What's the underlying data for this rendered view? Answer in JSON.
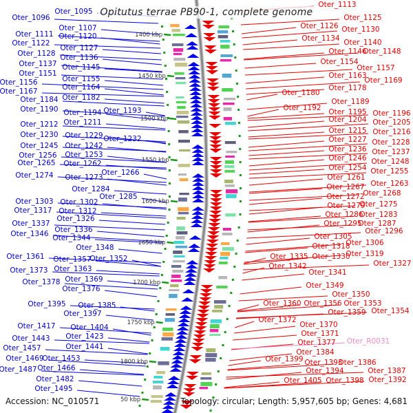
{
  "title": "Opitutus terrae PB90-1, complete genome",
  "footer": {
    "accession": "Accession: NC_010571",
    "summary": "Topology: circular; Length: 5,957,605 bp; Genes: 4,681"
  },
  "colors": {
    "forward_strand": "#0000e6",
    "reverse_strand": "#e60000",
    "rna_label": "#f08cc8",
    "backbone": "#888888",
    "tick": "#1a9a1a"
  },
  "kbp_ticks": [
    "1400 kbp",
    "1450 kbp",
    "1500 kbp",
    "1550 kbp",
    "1600 kbp",
    "1650 kbp",
    "1700 kbp",
    "1750 kbp",
    "1800 kbp",
    "50 kbp"
  ],
  "forward_genes": [
    {
      "label": "Oter_1095"
    },
    {
      "label": "Oter_1096"
    },
    {
      "label": "Oter_1107"
    },
    {
      "label": "Oter_1111"
    },
    {
      "label": "Oter_1120"
    },
    {
      "label": "Oter_1122"
    },
    {
      "label": "Oter_1127"
    },
    {
      "label": "Oter_1128"
    },
    {
      "label": "Oter_1136"
    },
    {
      "label": "Oter_1137"
    },
    {
      "label": "Oter_1145"
    },
    {
      "label": "Oter_1151"
    },
    {
      "label": "Oter_1155"
    },
    {
      "label": "Oter_1156"
    },
    {
      "label": "Oter_1164"
    },
    {
      "label": "Oter_1167"
    },
    {
      "label": "Oter_1182"
    },
    {
      "label": "Oter_1184"
    },
    {
      "label": "Oter_1190"
    },
    {
      "label": "Oter_1194"
    },
    {
      "label": "Oter_1193"
    },
    {
      "label": "Oter_1212"
    },
    {
      "label": "Oter_1211"
    },
    {
      "label": "Oter_1230"
    },
    {
      "label": "Oter_1229"
    },
    {
      "label": "Oter_1232"
    },
    {
      "label": "Oter_1245"
    },
    {
      "label": "Oter_1242"
    },
    {
      "label": "Oter_1256"
    },
    {
      "label": "Oter_1253"
    },
    {
      "label": "Oter_1265"
    },
    {
      "label": "Oter_1262"
    },
    {
      "label": "Oter_1266"
    },
    {
      "label": "Oter_1274"
    },
    {
      "label": "Oter_1273"
    },
    {
      "label": "Oter_1284"
    },
    {
      "label": "Oter_1285"
    },
    {
      "label": "Oter_1303"
    },
    {
      "label": "Oter_1302"
    },
    {
      "label": "Oter_1317"
    },
    {
      "label": "Oter_1312"
    },
    {
      "label": "Oter_1326"
    },
    {
      "label": "Oter_1337"
    },
    {
      "label": "Oter_1336"
    },
    {
      "label": "Oter_1346"
    },
    {
      "label": "Oter_1344"
    },
    {
      "label": "Oter_1348"
    },
    {
      "label": "Oter_1361"
    },
    {
      "label": "Oter_1357"
    },
    {
      "label": "Oter_1352"
    },
    {
      "label": "Oter_1363"
    },
    {
      "label": "Oter_1373"
    },
    {
      "label": "Oter_1369"
    },
    {
      "label": "Oter_1378"
    },
    {
      "label": "Oter_1376"
    },
    {
      "label": "Oter_1395"
    },
    {
      "label": "Oter_1385"
    },
    {
      "label": "Oter_1397"
    },
    {
      "label": "Oter_1417"
    },
    {
      "label": "Oter_1404"
    },
    {
      "label": "Oter_1443"
    },
    {
      "label": "Oter_1423"
    },
    {
      "label": "Oter_1457"
    },
    {
      "label": "Oter_1441"
    },
    {
      "label": "Oter_1469"
    },
    {
      "label": "Oter_1453"
    },
    {
      "label": "Oter_1487"
    },
    {
      "label": "Oter_1466"
    },
    {
      "label": "Oter_1482"
    },
    {
      "label": "Oter_1495"
    }
  ],
  "reverse_genes": [
    {
      "label": "Oter_1113"
    },
    {
      "label": "Oter_1125"
    },
    {
      "label": "Oter_1126"
    },
    {
      "label": "Oter_1130"
    },
    {
      "label": "Oter_1134"
    },
    {
      "label": "Oter_1140"
    },
    {
      "label": "Oter_1146"
    },
    {
      "label": "Oter_1148"
    },
    {
      "label": "Oter_1154"
    },
    {
      "label": "Oter_1157"
    },
    {
      "label": "Oter_1163"
    },
    {
      "label": "Oter_1169"
    },
    {
      "label": "Oter_1178"
    },
    {
      "label": "Oter_1180"
    },
    {
      "label": "Oter_1189"
    },
    {
      "label": "Oter_1192"
    },
    {
      "label": "Oter_1195"
    },
    {
      "label": "Oter_1196"
    },
    {
      "label": "Oter_1204"
    },
    {
      "label": "Oter_1205"
    },
    {
      "label": "Oter_1215"
    },
    {
      "label": "Oter_1216"
    },
    {
      "label": "Oter_1227"
    },
    {
      "label": "Oter_1228"
    },
    {
      "label": "Oter_1236"
    },
    {
      "label": "Oter_1237"
    },
    {
      "label": "Oter_1246"
    },
    {
      "label": "Oter_1248"
    },
    {
      "label": "Oter_1254"
    },
    {
      "label": "Oter_1255"
    },
    {
      "label": "Oter_1261"
    },
    {
      "label": "Oter_1263"
    },
    {
      "label": "Oter_1267"
    },
    {
      "label": "Oter_1268"
    },
    {
      "label": "Oter_1272"
    },
    {
      "label": "Oter_1279"
    },
    {
      "label": "Oter_1275"
    },
    {
      "label": "Oter_1286"
    },
    {
      "label": "Oter_1283"
    },
    {
      "label": "Oter_1295"
    },
    {
      "label": "Oter_1287"
    },
    {
      "label": "Oter_1296"
    },
    {
      "label": "Oter_1305"
    },
    {
      "label": "Oter_1306"
    },
    {
      "label": "Oter_1318"
    },
    {
      "label": "Oter_1335"
    },
    {
      "label": "Oter_1330"
    },
    {
      "label": "Oter_1319"
    },
    {
      "label": "Oter_1327"
    },
    {
      "label": "Oter_1342"
    },
    {
      "label": "Oter_1341"
    },
    {
      "label": "Oter_1349"
    },
    {
      "label": "Oter_1350"
    },
    {
      "label": "Oter_1360"
    },
    {
      "label": "Oter_1356"
    },
    {
      "label": "Oter_1353"
    },
    {
      "label": "Oter_1359"
    },
    {
      "label": "Oter_1354"
    },
    {
      "label": "Oter_1372"
    },
    {
      "label": "Oter_1370"
    },
    {
      "label": "Oter_1371"
    },
    {
      "label": "Oter_1377"
    },
    {
      "label": "Oter_R0031",
      "rna": true
    },
    {
      "label": "Oter_1384"
    },
    {
      "label": "Oter_1399"
    },
    {
      "label": "Oter_1393"
    },
    {
      "label": "Oter_1386"
    },
    {
      "label": "Oter_1394"
    },
    {
      "label": "Oter_1387"
    },
    {
      "label": "Oter_1405"
    },
    {
      "label": "Oter_1398"
    },
    {
      "label": "Oter_1392"
    }
  ]
}
